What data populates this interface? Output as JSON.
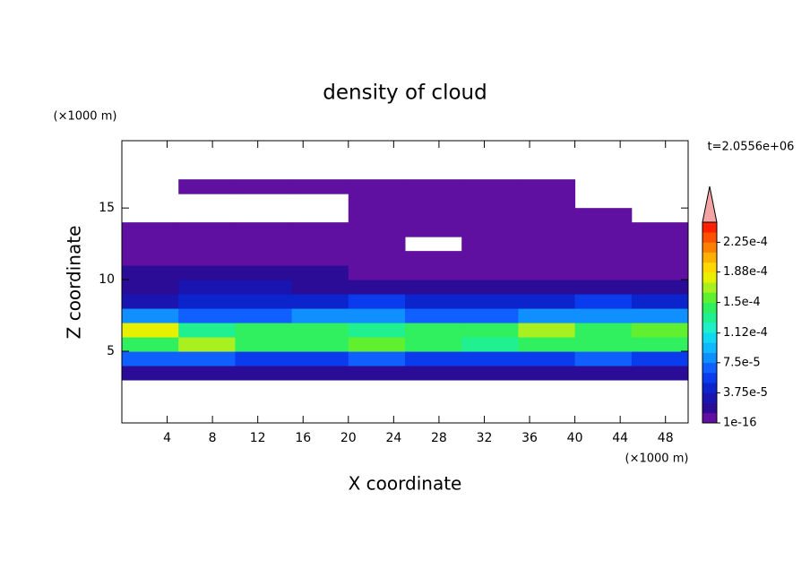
{
  "chart_data": {
    "type": "contour",
    "title": "density of cloud",
    "x_label": "X coordinate",
    "y_label": "Z coordinate",
    "x_unit": "(×1000 m)",
    "y_unit": "(×1000 m)",
    "time_label": "t=2.0556e+06",
    "xlim": [
      0,
      50
    ],
    "ylim": [
      0,
      19.7
    ],
    "xticks": [
      4,
      8,
      12,
      16,
      20,
      24,
      28,
      32,
      36,
      40,
      44,
      48
    ],
    "yticks": [
      5,
      10,
      15
    ],
    "x": [
      0,
      5,
      10,
      15,
      20,
      25,
      30,
      35,
      40,
      45,
      50
    ],
    "z": [
      3,
      4,
      5,
      6,
      7,
      8,
      9,
      10,
      11,
      12,
      13,
      14,
      15,
      16,
      17
    ],
    "field": [
      [
        2e-05,
        2e-05,
        2e-05,
        2e-05,
        2e-05,
        2e-05,
        2e-05,
        2e-05,
        2e-05,
        2e-05
      ],
      [
        7e-05,
        7e-05,
        6e-05,
        6e-05,
        7e-05,
        6e-05,
        6e-05,
        6e-05,
        7e-05,
        6e-05
      ],
      [
        0.00015,
        0.00017,
        0.00015,
        0.00014,
        0.00016,
        0.00015,
        0.00013,
        0.00015,
        0.00014,
        0.00014
      ],
      [
        0.00018,
        0.00013,
        0.00014,
        0.00015,
        0.00013,
        0.00015,
        0.00014,
        0.00017,
        0.00015,
        0.00016
      ],
      [
        8e-05,
        7e-05,
        7e-05,
        8e-05,
        8e-05,
        7e-05,
        7e-05,
        8e-05,
        8e-05,
        8e-05
      ],
      [
        3e-05,
        4e-05,
        4e-05,
        4e-05,
        5e-05,
        4e-05,
        4e-05,
        4.5e-05,
        5e-05,
        4e-05
      ],
      [
        1.5e-05,
        2.5e-05,
        2.5e-05,
        2e-05,
        2e-05,
        2e-05,
        1.5e-05,
        2e-05,
        2e-05,
        1.5e-05
      ],
      [
        1.5e-05,
        2e-05,
        2e-05,
        1.5e-05,
        1e-05,
        1e-05,
        1e-05,
        1e-05,
        1e-05,
        1e-05
      ],
      [
        1e-05,
        1e-05,
        1e-05,
        5e-06,
        5e-06,
        5e-06,
        5e-06,
        5e-06,
        5e-06,
        5e-06
      ],
      [
        5e-06,
        5e-06,
        5e-06,
        5e-06,
        5e-06,
        null,
        5e-06,
        5e-06,
        5e-06,
        5e-06
      ],
      [
        5e-06,
        5e-06,
        5e-06,
        5e-06,
        5e-06,
        5e-06,
        5e-06,
        5e-06,
        5e-06,
        5e-06
      ],
      [
        null,
        null,
        null,
        null,
        5e-06,
        5e-06,
        5e-06,
        5e-06,
        5e-06,
        null
      ],
      [
        null,
        null,
        null,
        null,
        5e-06,
        5e-06,
        5e-06,
        5e-06,
        null,
        null
      ],
      [
        null,
        5e-06,
        5e-06,
        5e-06,
        5e-06,
        5e-06,
        5e-06,
        5e-06,
        null,
        null
      ]
    ],
    "colorbar": {
      "lim": [
        0,
        0.00025
      ],
      "ticks": [
        1e-16,
        {
          "value": 3.75e-05,
          "label": "3.75e-5"
        },
        {
          "value": 7.5e-05,
          "label": "7.5e-5"
        },
        {
          "value": 0.000112,
          "label": "1.12e-4"
        },
        {
          "value": 0.00015,
          "label": "1.5e-4"
        },
        {
          "value": 0.000188,
          "label": "1.88e-4"
        },
        {
          "value": 0.000225,
          "label": "2.25e-4"
        }
      ],
      "colors": [
        "#6010a0",
        "#2a0c96",
        "#1a14b0",
        "#0c24cc",
        "#0a3cee",
        "#1060ff",
        "#1090ff",
        "#10b8ff",
        "#10d8f0",
        "#20f0c8",
        "#20f090",
        "#30f060",
        "#60f030",
        "#a8f020",
        "#e8f000",
        "#ffd800",
        "#ffb000",
        "#ff8000",
        "#ff5000",
        "#ff2000"
      ],
      "over_color": "#f4a4a4"
    }
  }
}
